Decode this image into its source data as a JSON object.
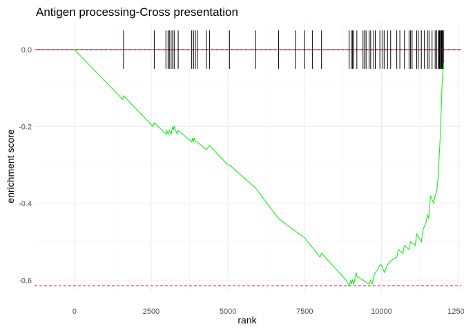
{
  "chart_data": {
    "type": "line",
    "title": "Antigen processing-Cross presentation",
    "xlabel": "rank",
    "ylabel": "enrichment score",
    "xlim": [
      -1300,
      12600
    ],
    "ylim": [
      -0.63,
      0.07
    ],
    "x_ticks": [
      0,
      2500,
      5000,
      7500,
      10000,
      12500
    ],
    "x_tick_labels": [
      "0",
      "2500",
      "5000",
      "7500",
      "10000",
      "12500"
    ],
    "y_ticks": [
      0.0,
      -0.2,
      -0.4,
      -0.6
    ],
    "y_tick_labels": [
      "0.0",
      "-0.2",
      "-0.4",
      "-0.6"
    ],
    "grid": true,
    "reference_lines": [
      {
        "y": 0.0,
        "style": "dashed",
        "color": "#b2182b"
      },
      {
        "y": -0.615,
        "style": "dashed",
        "color": "#b2182b"
      }
    ],
    "series": [
      {
        "color": "#00ee00",
        "x": [
          0,
          1580,
          1600,
          2560,
          2600,
          2980,
          3000,
          3050,
          3090,
          3150,
          3200,
          3220,
          3250,
          3350,
          3380,
          3820,
          3850,
          3880,
          3900,
          3940,
          3990,
          4300,
          4400,
          5000,
          5050,
          5900,
          6650,
          7500,
          8000,
          8050,
          8850,
          8950,
          9000,
          9020,
          9060,
          9100,
          9180,
          9200,
          9400,
          9600,
          9640,
          9700,
          9750,
          9800,
          9900,
          9950,
          10000,
          10100,
          10200,
          10300,
          10500,
          10550,
          10700,
          10750,
          10900,
          10950,
          11100,
          11150,
          11300,
          11350,
          11450,
          11500,
          11540,
          11600,
          11650,
          11700,
          11750,
          11800,
          11850,
          11880,
          11900,
          11930,
          11950,
          11970,
          12000,
          12020,
          12040
        ],
        "y": [
          0.0,
          -0.13,
          -0.12,
          -0.2,
          -0.19,
          -0.22,
          -0.21,
          -0.22,
          -0.21,
          -0.22,
          -0.2,
          -0.21,
          -0.2,
          -0.22,
          -0.21,
          -0.24,
          -0.23,
          -0.24,
          -0.23,
          -0.24,
          -0.24,
          -0.26,
          -0.25,
          -0.3,
          -0.3,
          -0.36,
          -0.44,
          -0.49,
          -0.54,
          -0.53,
          -0.6,
          -0.615,
          -0.6,
          -0.61,
          -0.6,
          -0.61,
          -0.58,
          -0.59,
          -0.6,
          -0.61,
          -0.6,
          -0.61,
          -0.59,
          -0.58,
          -0.57,
          -0.56,
          -0.56,
          -0.58,
          -0.56,
          -0.55,
          -0.54,
          -0.52,
          -0.53,
          -0.51,
          -0.52,
          -0.5,
          -0.51,
          -0.48,
          -0.5,
          -0.47,
          -0.45,
          -0.43,
          -0.44,
          -0.38,
          -0.39,
          -0.4,
          -0.38,
          -0.37,
          -0.33,
          -0.28,
          -0.25,
          -0.2,
          -0.15,
          -0.1,
          -0.06,
          -0.04,
          -0.03
        ]
      }
    ],
    "hit_ranks": [
      1600,
      2600,
      2980,
      3050,
      3090,
      3150,
      3200,
      3250,
      3380,
      3820,
      3880,
      3940,
      4000,
      4300,
      4400,
      5050,
      5900,
      6650,
      7200,
      7500,
      7750,
      8050,
      8950,
      9020,
      9060,
      9100,
      9200,
      9400,
      9450,
      9500,
      9600,
      9650,
      9750,
      9800,
      9950,
      10050,
      10100,
      10200,
      10300,
      10500,
      10600,
      10750,
      10900,
      10950,
      11000,
      11150,
      11200,
      11300,
      11400,
      11500,
      11550,
      11650,
      11750,
      11800,
      11850,
      11880,
      11900,
      11930,
      11950,
      11970,
      11990,
      12020
    ],
    "hit_segment": [
      0.0,
      -0.05,
      0.05
    ]
  }
}
